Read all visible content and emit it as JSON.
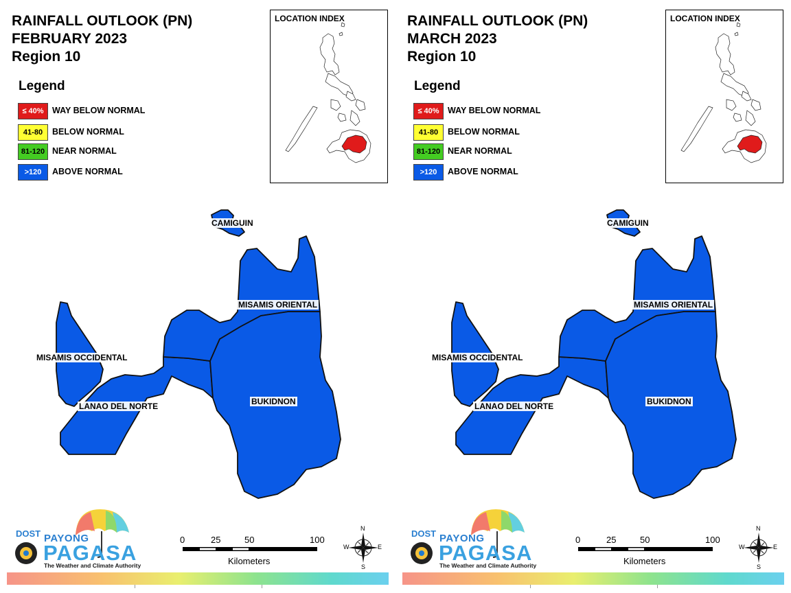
{
  "panels": [
    {
      "title_line1": "RAINFALL OUTLOOK (PN)",
      "title_line2": "FEBRUARY 2023",
      "title_line3": "Region 10"
    },
    {
      "title_line1": "RAINFALL OUTLOOK (PN)",
      "title_line2": "MARCH 2023",
      "title_line3": "Region 10"
    }
  ],
  "legend": {
    "heading": "Legend",
    "items": [
      {
        "range": "≤ 40%",
        "label": "WAY BELOW NORMAL",
        "color": "#e01b1b",
        "text_color": "#ffffff"
      },
      {
        "range": "41-80",
        "label": "BELOW NORMAL",
        "color": "#ffff33",
        "text_color": "#000000"
      },
      {
        "range": "81-120",
        "label": "NEAR NORMAL",
        "color": "#44cc22",
        "text_color": "#000000"
      },
      {
        "range": ">120",
        "label": "ABOVE NORMAL",
        "color": "#0a5ae6",
        "text_color": "#ffffff"
      }
    ]
  },
  "inset": {
    "title": "LOCATION INDEX",
    "highlight_color": "#e01b1b"
  },
  "provinces": {
    "camiguin": {
      "name": "CAMIGUIN",
      "category": "ABOVE NORMAL"
    },
    "misamis_oriental": {
      "name": "MISAMIS ORIENTAL",
      "category": "ABOVE NORMAL"
    },
    "misamis_occidental": {
      "name": "MISAMIS OCCIDENTAL",
      "category": "ABOVE NORMAL"
    },
    "lanao_del_norte": {
      "name": "LANAO DEL NORTE",
      "category": "ABOVE NORMAL"
    },
    "bukidnon": {
      "name": "BUKIDNON",
      "category": "ABOVE NORMAL"
    }
  },
  "province_color": "#0a5ae6",
  "logo": {
    "dost": "DOST",
    "payong": "PAYONG",
    "pagasa": "PAGASA",
    "tagline": "The Weather and Climate Authority"
  },
  "scale_bar": {
    "ticks": [
      "0",
      "25",
      "50",
      "100"
    ],
    "unit": "Kilometers"
  },
  "compass": {
    "n": "N",
    "s": "S",
    "e": "E",
    "w": "W"
  }
}
